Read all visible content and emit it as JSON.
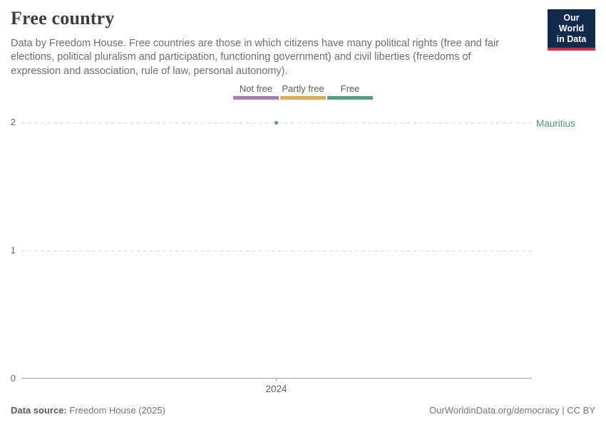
{
  "header": {
    "title": "Free country",
    "subtitle": "Data by Freedom House. Free countries are those in which citizens have many political rights (free and fair elections, political pluralism and participation, functioning government) and civil liberties (freedoms of expression and association, rule of law, personal autonomy).",
    "logo": {
      "line1": "Our World",
      "line2": "in Data",
      "bg_color": "#102b4e",
      "stripe_color": "#d0303e"
    }
  },
  "legend": {
    "items": [
      {
        "label": "Not free",
        "color": "#a87db3"
      },
      {
        "label": "Partly free",
        "color": "#e3ab47"
      },
      {
        "label": "Free",
        "color": "#4fa183"
      }
    ]
  },
  "chart": {
    "y_ticks": {
      "top": "2",
      "mid": "1",
      "bottom": "0"
    },
    "x_tick": "2024",
    "entity_label": "Mauritius",
    "entity_color": "#419878",
    "point_color": "#4ba183"
  },
  "footer": {
    "source_prefix": "Data source:",
    "source_text": "Freedom House (2025)",
    "right_text": "OurWorldinData.org/democracy | CC BY"
  },
  "chart_data": {
    "type": "scatter",
    "title": "Free country",
    "series": [
      {
        "name": "Mauritius",
        "x": [
          2024
        ],
        "y": [
          2
        ]
      }
    ],
    "x_tick_labels": [
      "2024"
    ],
    "y_tick_labels": [
      0,
      1,
      2
    ],
    "ylim": [
      0,
      2
    ],
    "grid": "dashed horizontal",
    "legend_position": "top-center",
    "legend_categories": [
      {
        "label": "Not free",
        "value": 0,
        "color": "#a87db3"
      },
      {
        "label": "Partly free",
        "value": 1,
        "color": "#e3ab47"
      },
      {
        "label": "Free",
        "value": 2,
        "color": "#4fa183"
      }
    ],
    "annotations": [
      "Mauritius"
    ]
  }
}
